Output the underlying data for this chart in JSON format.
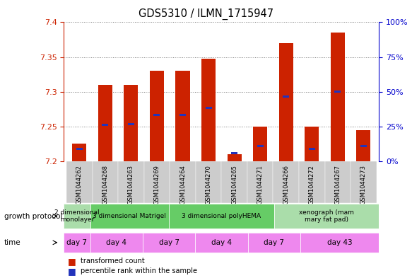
{
  "title": "GDS5310 / ILMN_1715947",
  "samples": [
    "GSM1044262",
    "GSM1044268",
    "GSM1044263",
    "GSM1044269",
    "GSM1044264",
    "GSM1044270",
    "GSM1044265",
    "GSM1044271",
    "GSM1044266",
    "GSM1044272",
    "GSM1044267",
    "GSM1044273"
  ],
  "transformed_count": [
    7.225,
    7.31,
    7.31,
    7.33,
    7.33,
    7.348,
    7.21,
    7.25,
    7.37,
    7.25,
    7.385,
    7.245
  ],
  "percentile_rank": [
    7.218,
    7.252,
    7.253,
    7.267,
    7.267,
    7.277,
    7.212,
    7.222,
    7.293,
    7.218,
    7.3,
    7.222
  ],
  "y_min": 7.2,
  "y_max": 7.4,
  "y_ticks_left": [
    7.2,
    7.25,
    7.3,
    7.35,
    7.4
  ],
  "y_ticks_right": [
    0,
    25,
    50,
    75,
    100
  ],
  "bar_color": "#CC2200",
  "percentile_color": "#2233BB",
  "growth_protocol_groups": [
    {
      "label": "2 dimensional\nmonolayer",
      "start": 0,
      "end": 2,
      "color": "#AADDAA"
    },
    {
      "label": "3 dimensional Matrigel",
      "start": 2,
      "end": 8,
      "color": "#66CC66"
    },
    {
      "label": "3 dimensional polyHEMA",
      "start": 8,
      "end": 16,
      "color": "#66CC66"
    },
    {
      "label": "xenograph (mam\nmary fat pad)",
      "start": 16,
      "end": 24,
      "color": "#AADDAA"
    }
  ],
  "time_groups": [
    {
      "label": "day 7",
      "start": 0,
      "end": 2
    },
    {
      "label": "day 4",
      "start": 2,
      "end": 6
    },
    {
      "label": "day 7",
      "start": 6,
      "end": 10
    },
    {
      "label": "day 4",
      "start": 10,
      "end": 14
    },
    {
      "label": "day 7",
      "start": 14,
      "end": 18
    },
    {
      "label": "day 43",
      "start": 18,
      "end": 24
    }
  ],
  "growth_protocol_label": "growth protocol",
  "time_label": "time",
  "legend_bar": "transformed count",
  "legend_percentile": "percentile rank within the sample",
  "left_axis_color": "#CC2200",
  "right_axis_color": "#0000CC",
  "sample_bg_color": "#CCCCCC",
  "protocol_color_light": "#AADDAA",
  "protocol_color_dark": "#66CC66",
  "time_color": "#EE88EE"
}
